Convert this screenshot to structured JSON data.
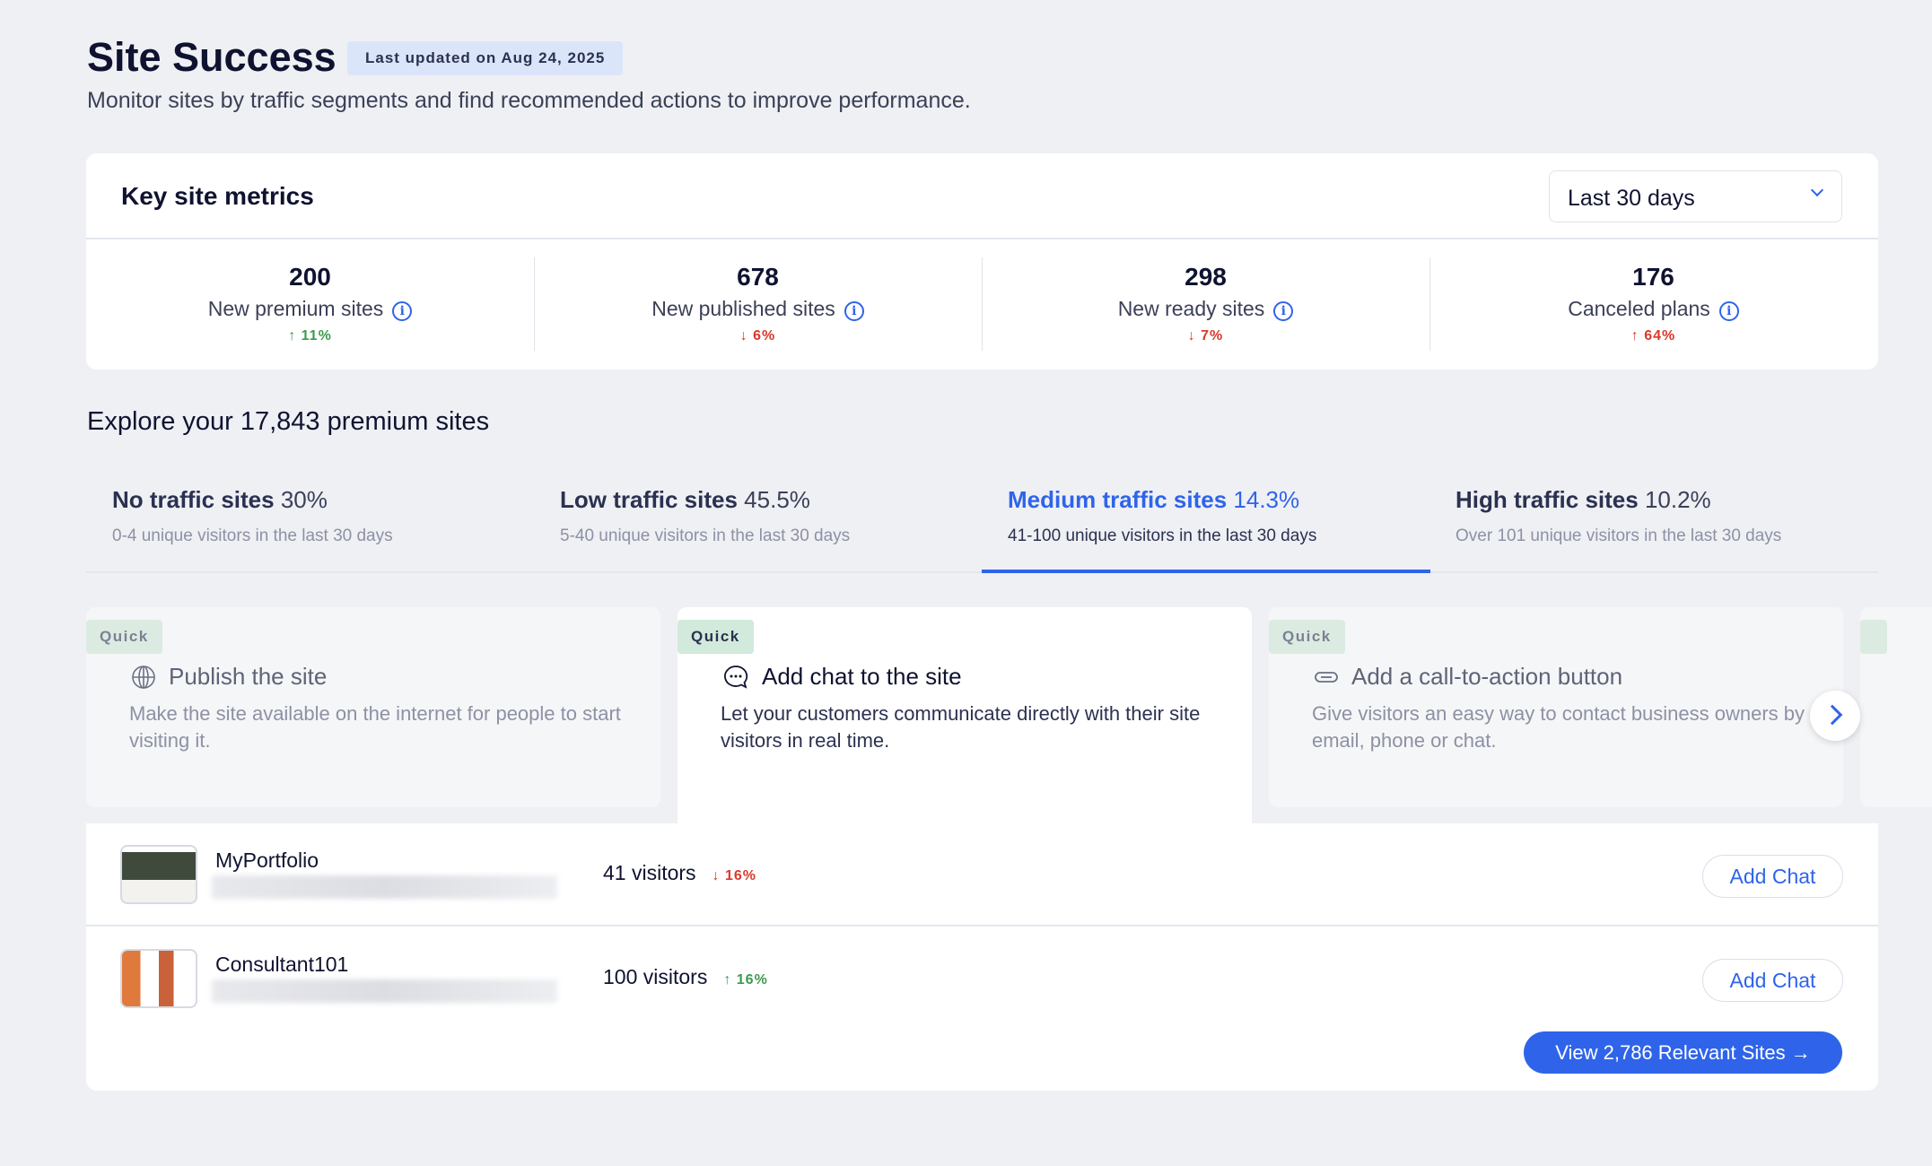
{
  "header": {
    "title": "Site Success",
    "badge": "Last updated on Aug 24, 2025",
    "subtitle": "Monitor sites by traffic segments and find recommended actions to improve performance."
  },
  "metrics": {
    "title": "Key site metrics",
    "range": "Last 30 days",
    "items": [
      {
        "value": "200",
        "label": "New premium sites",
        "change": "11%",
        "direction": "up"
      },
      {
        "value": "678",
        "label": "New published sites",
        "change": "6%",
        "direction": "down"
      },
      {
        "value": "298",
        "label": "New ready sites",
        "change": "7%",
        "direction": "down"
      },
      {
        "value": "176",
        "label": "Canceled plans",
        "change": "64%",
        "direction": "up"
      }
    ]
  },
  "explore": {
    "title": "Explore your 17,843 premium sites",
    "tabs": [
      {
        "name": "No traffic sites",
        "pct": "30%",
        "sub": "0-4 unique visitors in the last 30 days"
      },
      {
        "name": "Low traffic sites",
        "pct": "45.5%",
        "sub": "5-40 unique visitors in the last 30 days"
      },
      {
        "name": "Medium traffic sites",
        "pct": "14.3%",
        "sub": "41-100 unique visitors in the last 30 days",
        "active": true
      },
      {
        "name": "High traffic sites",
        "pct": "10.2%",
        "sub": "Over 101 unique visitors in the last 30 days"
      }
    ]
  },
  "actions": [
    {
      "tag": "Quick",
      "title": "Publish the site",
      "desc": "Make the site available on the internet for people to start visiting it.",
      "icon": "globe-icon"
    },
    {
      "tag": "Quick",
      "title": "Add chat to the site",
      "desc": "Let your customers communicate directly with their site visitors in real time.",
      "icon": "chat-icon",
      "selected": true
    },
    {
      "tag": "Quick",
      "title": "Add a call-to-action button",
      "desc": "Give visitors an easy way to contact business owners by email, phone or chat.",
      "icon": "button-icon"
    }
  ],
  "sites": [
    {
      "name": "MyPortfolio",
      "visitors": "41 visitors",
      "change": "16%",
      "direction": "down",
      "action": "Add Chat"
    },
    {
      "name": "Consultant101",
      "visitors": "100 visitors",
      "change": "16%",
      "direction": "up",
      "action": "Add Chat"
    }
  ],
  "view_button": "View 2,786 Relevant Sites",
  "colors": {
    "accent": "#2f64ea",
    "up": "#3e9a4f",
    "down": "#d8392b"
  }
}
